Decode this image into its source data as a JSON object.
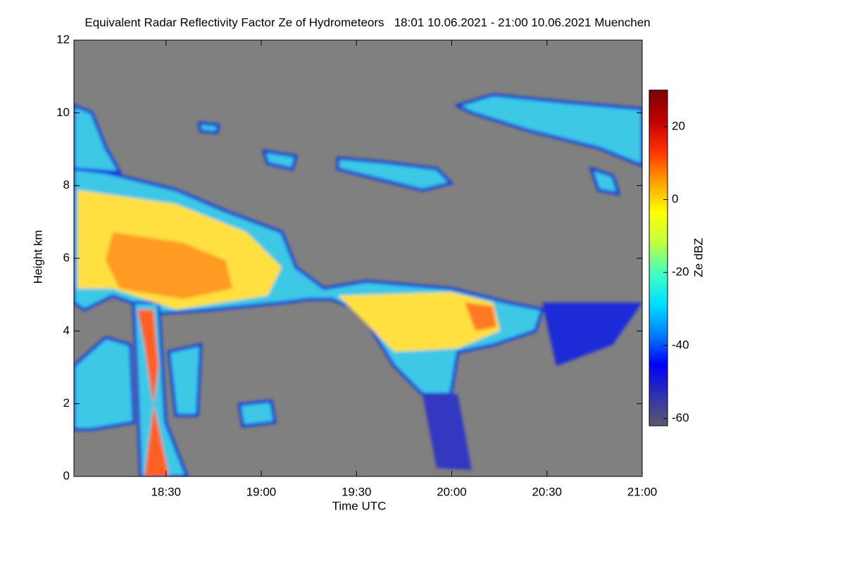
{
  "chart_data": {
    "type": "heatmap",
    "title": "Equivalent Radar Reflectivity Factor Ze of Hydrometeors   18:01 10.06.2021 - 21:00 10.06.2021 Muenchen",
    "xlabel": "Time UTC",
    "ylabel": "Height km",
    "xlim": [
      1081,
      1260
    ],
    "xticks": [
      {
        "value": 1110,
        "label": "18:30"
      },
      {
        "value": 1140,
        "label": "19:00"
      },
      {
        "value": 1170,
        "label": "19:30"
      },
      {
        "value": 1200,
        "label": "20:00"
      },
      {
        "value": 1230,
        "label": "20:30"
      },
      {
        "value": 1260,
        "label": "21:00"
      }
    ],
    "ylim": [
      0,
      12
    ],
    "yticks": [
      0,
      2,
      4,
      6,
      8,
      10,
      12
    ],
    "colorbar": {
      "label": "Ze dBZ",
      "lim": [
        -62,
        30
      ],
      "ticks": [
        20,
        0,
        -20,
        -40,
        -60
      ]
    },
    "colormap": [
      "#5a5a6e",
      "#3030b0",
      "#0000ff",
      "#0080ff",
      "#00e0ff",
      "#40ffc0",
      "#c0ff40",
      "#ffff00",
      "#ffa000",
      "#ff3000",
      "#c00000",
      "#800000"
    ],
    "missing_color": "#808080"
  }
}
